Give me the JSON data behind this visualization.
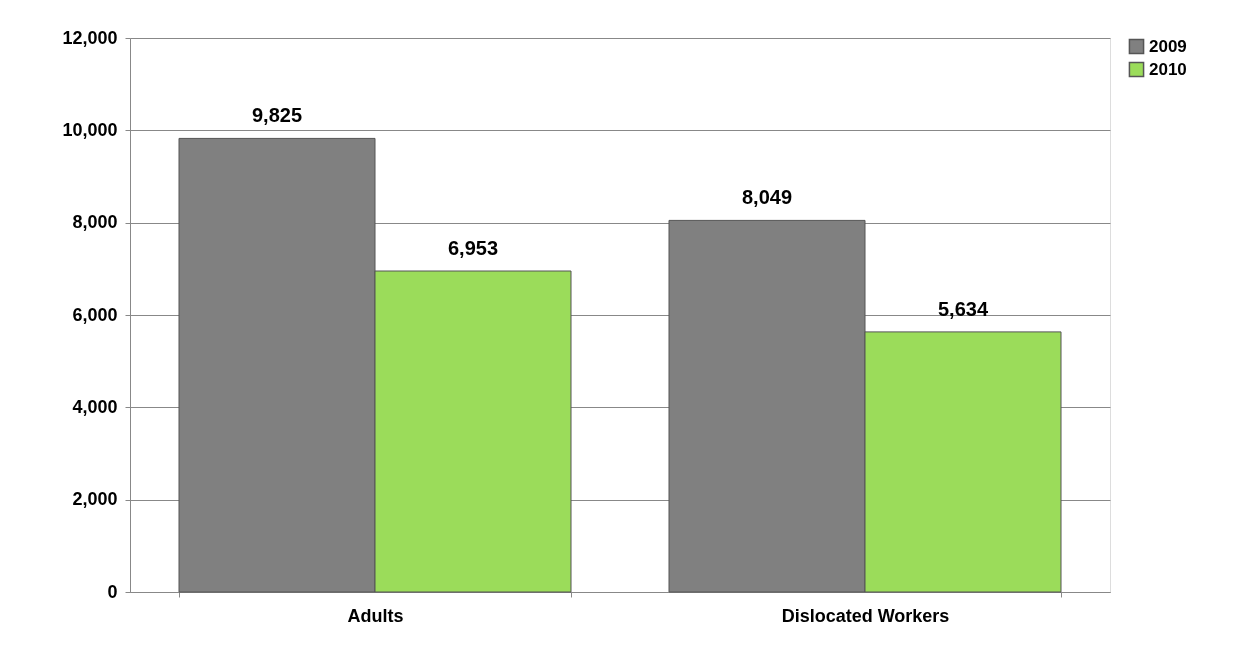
{
  "chart_data": {
    "type": "bar",
    "categories": [
      "Adults",
      "Dislocated Workers"
    ],
    "series": [
      {
        "name": "2009",
        "color": "#808080",
        "values": [
          9825,
          8049
        ],
        "value_labels": [
          "9,825",
          "8,049"
        ]
      },
      {
        "name": "2010",
        "color": "#9bdc5a",
        "values": [
          6953,
          5634
        ],
        "value_labels": [
          "6,953",
          "5,634"
        ]
      }
    ],
    "ylim": [
      0,
      12000
    ],
    "yticks": [
      0,
      {
        "value": 2000,
        "label": "2,000"
      },
      {
        "value": 4000,
        "label": "4,000"
      },
      {
        "value": 6000,
        "label": "6,000"
      },
      {
        "value": 8000,
        "label": "8,000"
      },
      {
        "value": 10000,
        "label": "10,000"
      },
      {
        "value": 12000,
        "label": "12,000"
      }
    ],
    "grid": "y",
    "legend": "right"
  }
}
